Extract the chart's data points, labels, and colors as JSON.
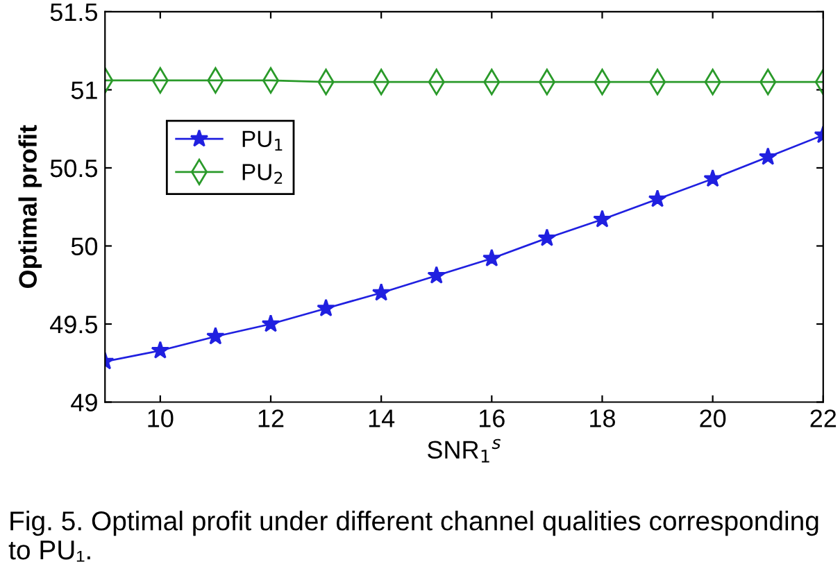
{
  "chart_data": {
    "type": "line",
    "xlabel": "SNR$_{1}$$^{s}$",
    "ylabel": "Optimal profit",
    "x": [
      9,
      10,
      11,
      12,
      13,
      14,
      15,
      16,
      17,
      18,
      19,
      20,
      21,
      22
    ],
    "series": [
      {
        "name": "PU$_{1}$",
        "color": "#2020e0",
        "marker": "star",
        "values": [
          49.26,
          49.33,
          49.42,
          49.5,
          49.6,
          49.7,
          49.81,
          49.92,
          50.05,
          50.17,
          50.3,
          50.43,
          50.57,
          50.71
        ]
      },
      {
        "name": "PU$_{2}$",
        "color": "#2a9a2a",
        "marker": "diamond",
        "values": [
          51.06,
          51.06,
          51.06,
          51.06,
          51.05,
          51.05,
          51.05,
          51.05,
          51.05,
          51.05,
          51.05,
          51.05,
          51.05,
          51.05
        ]
      }
    ],
    "xlim": [
      9,
      22
    ],
    "xticks": [
      10,
      12,
      14,
      16,
      18,
      20,
      22
    ],
    "ylim": [
      49,
      51.5
    ],
    "yticks": [
      49,
      49.5,
      50,
      50.5,
      51,
      51.5
    ],
    "grid": false,
    "legend": "upper left",
    "line_style": "solid",
    "annotations": [
      "Fig. 5. Optimal profit under different channel qualities corresponding to PU₁."
    ]
  }
}
